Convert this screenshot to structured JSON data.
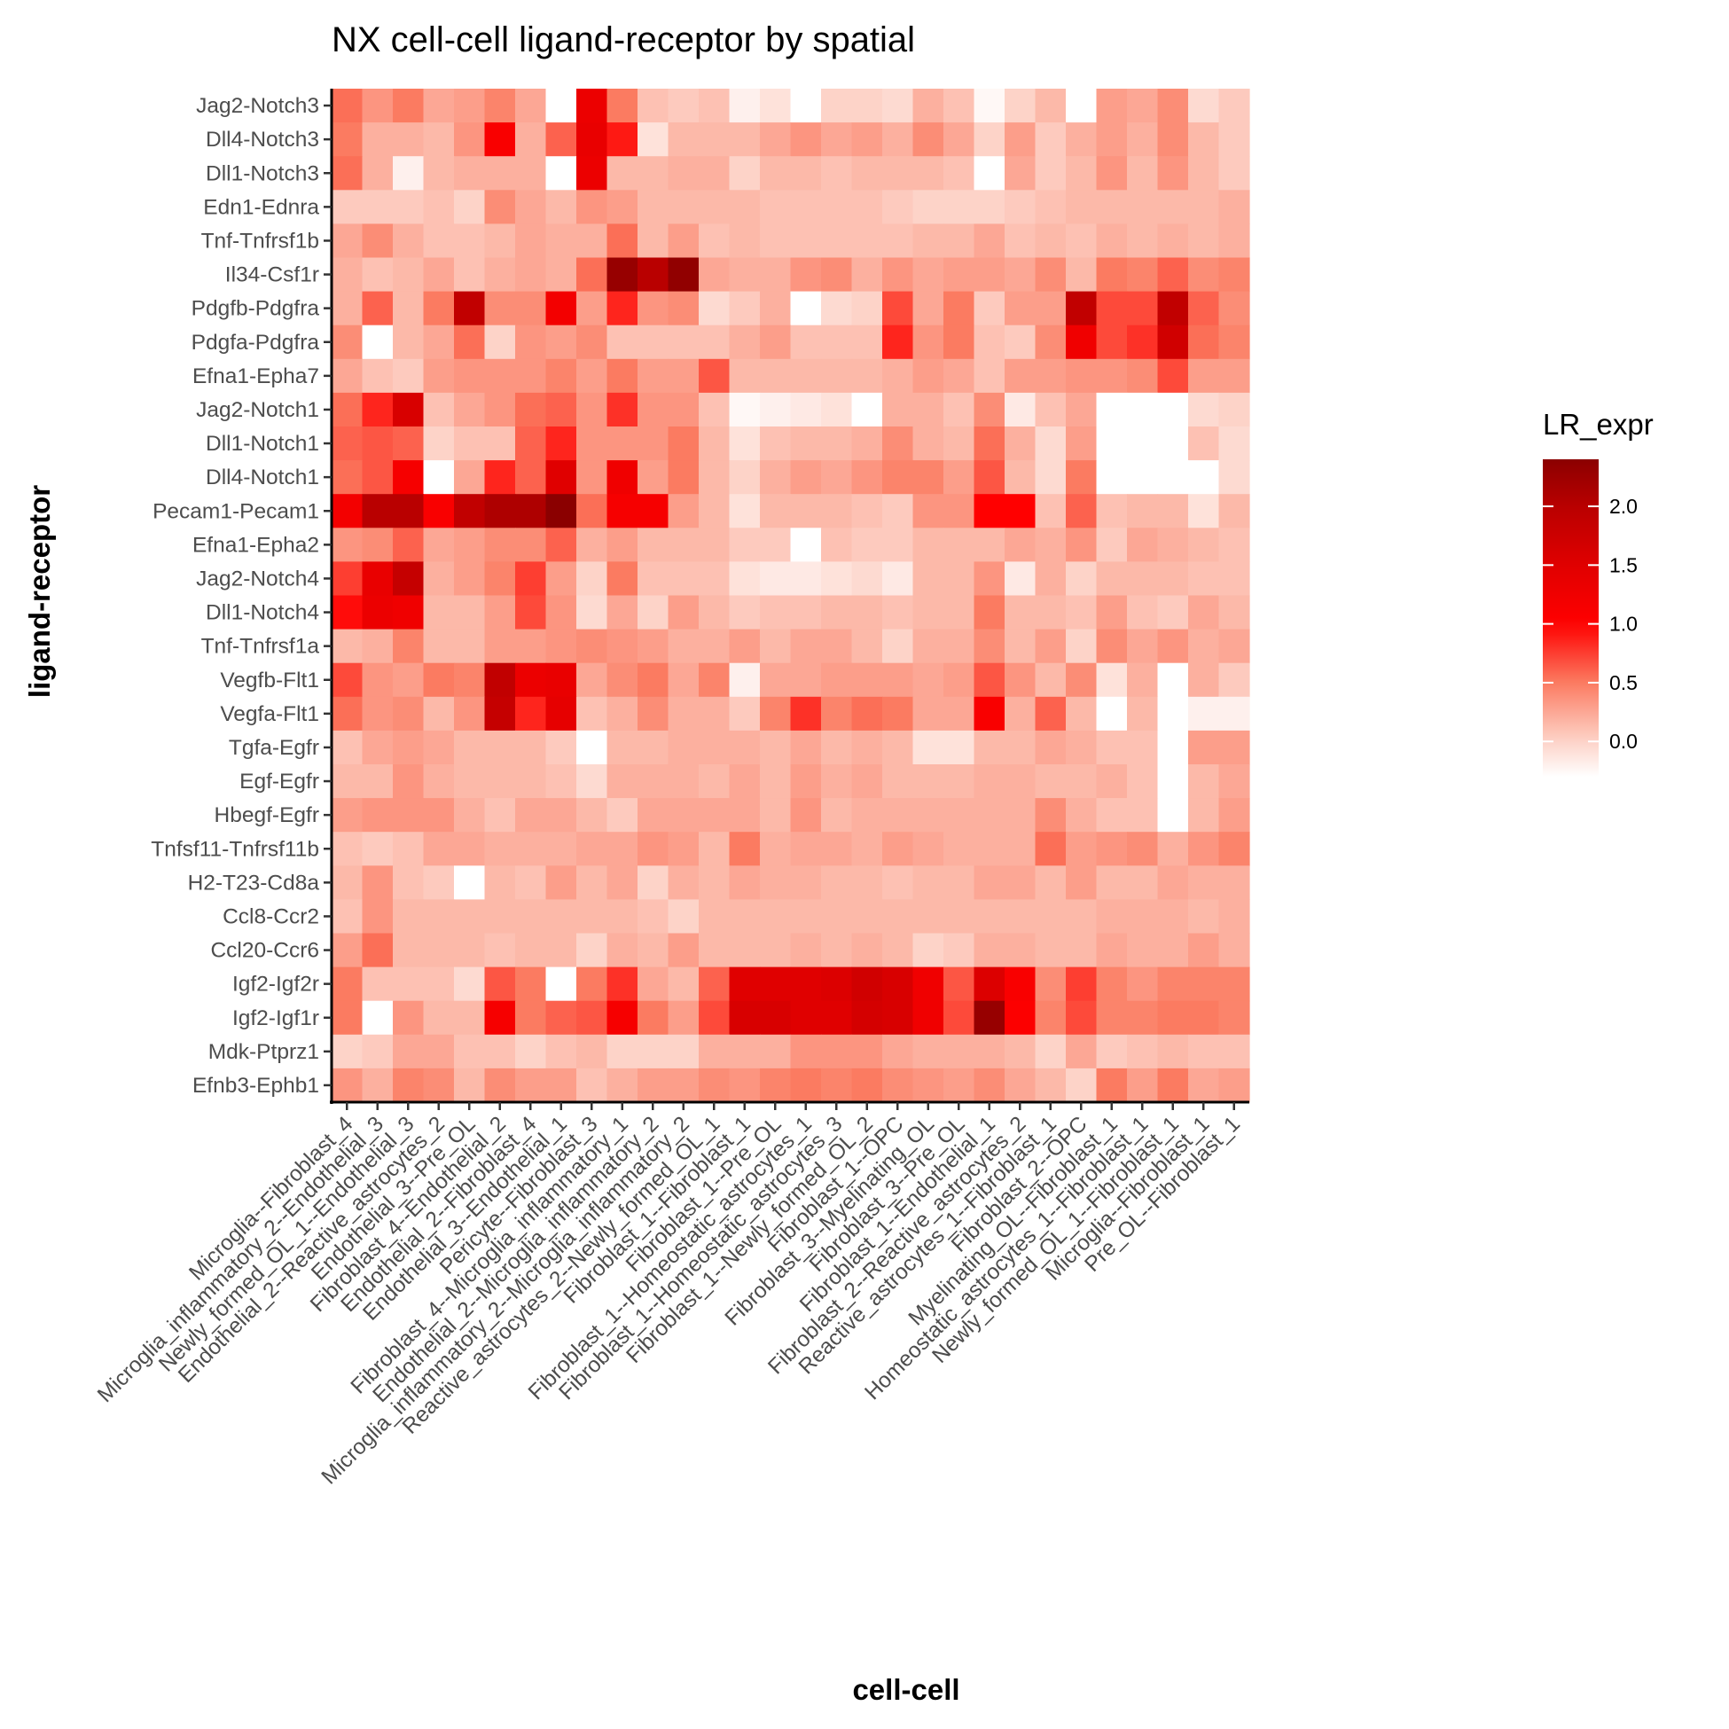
{
  "chart_data": {
    "type": "heatmap",
    "title": "NX cell-cell ligand-receptor by spatial",
    "xlabel": "cell-cell",
    "ylabel": "ligand-receptor",
    "legend": {
      "title": "LR_expr",
      "ticks": [
        0.0,
        0.5,
        1.0,
        1.5,
        2.0
      ],
      "tick_labels": [
        "0.0",
        "0.5",
        "1.0",
        "1.5",
        "2.0"
      ],
      "range": [
        -0.3,
        2.4
      ],
      "position": "right"
    },
    "color_scale": {
      "low": "#ffffff",
      "stops": [
        {
          "value": -0.3,
          "color": "#ffffff"
        },
        {
          "value": 0.0,
          "color": "#fdd3c8"
        },
        {
          "value": 0.5,
          "color": "#fb7b61"
        },
        {
          "value": 1.0,
          "color": "#ff0000"
        },
        {
          "value": 1.5,
          "color": "#e00000"
        },
        {
          "value": 2.0,
          "color": "#b90000"
        },
        {
          "value": 2.4,
          "color": "#8b0000"
        }
      ],
      "missing": "#ffffff"
    },
    "x": [
      "Microglia--Fibroblast_4",
      "Microglia_inflammatory_2--Endothelial_3",
      "Newly_formed_OL_1--Endothelial_3",
      "Endothelial_2--Reactive_astrocytes_2",
      "Endothelial_3--Pre_OL",
      "Fibroblast_4--Endothelial_2",
      "Endothelial_2--Fibroblast_4",
      "Endothelial_3--Endothelial_1",
      "Pericyte--Fibroblast_3",
      "Fibroblast_4--Microglia_inflammatory_1",
      "Endothelial_2--Microglia_inflammatory_2",
      "Microglia_inflammatory_2--Microglia_inflammatory_2",
      "Reactive_astrocytes_2--Newly_formed_OL_1",
      "Fibroblast_1--Fibroblast_1",
      "Fibroblast_1--Pre_OL",
      "Fibroblast_1--Homeostatic_astrocytes_1",
      "Fibroblast_1--Homeostatic_astrocytes_3",
      "Fibroblast_1--Newly_formed_OL_2",
      "Fibroblast_1--OPC",
      "Fibroblast_3--Myelinating_OL",
      "Fibroblast_3--Pre_OL",
      "Fibroblast_1--Endothelial_1",
      "Fibroblast_2--Reactive_astrocytes_2",
      "Reactive_astrocytes_1--Fibroblast_1",
      "Fibroblast_2--OPC",
      "Myelinating_OL--Fibroblast_1",
      "Homeostatic_astrocytes_1--Fibroblast_1",
      "Newly_formed_OL_1--Fibroblast_1",
      "Microglia--Fibroblast_1",
      "Pre_OL--Fibroblast_1"
    ],
    "y": [
      "Jag2-Notch3",
      "Dll4-Notch3",
      "Dll1-Notch3",
      "Edn1-Ednra",
      "Tnf-Tnfrsf1b",
      "Il34-Csf1r",
      "Pdgfb-Pdgfra",
      "Pdgfa-Pdgfra",
      "Efna1-Epha7",
      "Jag2-Notch1",
      "Dll1-Notch1",
      "Dll4-Notch1",
      "Pecam1-Pecam1",
      "Efna1-Epha2",
      "Jag2-Notch4",
      "Dll1-Notch4",
      "Tnf-Tnfrsf1a",
      "Vegfb-Flt1",
      "Vegfa-Flt1",
      "Tgfa-Egfr",
      "Egf-Egfr",
      "Hbegf-Egfr",
      "Tnfsf11-Tnfrsf11b",
      "H2-T23-Cd8a",
      "Ccl8-Ccr2",
      "Ccl20-Ccr6",
      "Igf2-Igf2r",
      "Igf2-Igf1r",
      "Mdk-Ptprz1",
      "Efnb3-Ephb1"
    ],
    "values": [
      [
        0.55,
        0.35,
        0.5,
        0.25,
        0.3,
        0.45,
        0.25,
        -0.3,
        1.3,
        0.5,
        0.1,
        0.05,
        0.1,
        -0.2,
        -0.1,
        -0.3,
        0.0,
        0.0,
        -0.05,
        0.2,
        0.1,
        -0.25,
        0.0,
        0.15,
        -0.3,
        0.3,
        0.25,
        0.4,
        -0.05,
        0.05
      ],
      [
        0.5,
        0.2,
        0.2,
        0.15,
        0.35,
        1.1,
        0.2,
        0.6,
        1.35,
        0.9,
        -0.1,
        0.15,
        0.15,
        0.15,
        0.25,
        0.35,
        0.25,
        0.3,
        0.2,
        0.4,
        0.25,
        0.0,
        0.3,
        0.05,
        0.2,
        0.3,
        0.2,
        0.4,
        0.15,
        0.05
      ],
      [
        0.55,
        0.2,
        -0.2,
        0.15,
        0.2,
        0.2,
        0.2,
        -0.3,
        1.3,
        0.15,
        0.15,
        0.2,
        0.2,
        0.0,
        0.15,
        0.15,
        0.1,
        0.15,
        0.15,
        0.15,
        0.1,
        -0.3,
        0.25,
        0.05,
        0.15,
        0.35,
        0.15,
        0.35,
        0.15,
        0.05
      ],
      [
        0.05,
        0.05,
        0.05,
        0.1,
        0.0,
        0.4,
        0.25,
        0.15,
        0.35,
        0.3,
        0.15,
        0.15,
        0.15,
        0.15,
        0.1,
        0.1,
        0.1,
        0.1,
        0.05,
        0.0,
        0.0,
        0.0,
        0.05,
        0.1,
        0.15,
        0.15,
        0.15,
        0.15,
        0.15,
        0.2
      ],
      [
        0.25,
        0.4,
        0.2,
        0.1,
        0.1,
        0.15,
        0.25,
        0.2,
        0.2,
        0.55,
        0.15,
        0.3,
        0.1,
        0.15,
        0.1,
        0.1,
        0.1,
        0.1,
        0.1,
        0.15,
        0.15,
        0.25,
        0.1,
        0.15,
        0.1,
        0.2,
        0.15,
        0.2,
        0.15,
        0.2
      ],
      [
        0.2,
        0.1,
        0.15,
        0.25,
        0.1,
        0.2,
        0.25,
        0.2,
        0.55,
        2.3,
        2.0,
        2.35,
        0.25,
        0.2,
        0.2,
        0.35,
        0.4,
        0.2,
        0.35,
        0.25,
        0.3,
        0.3,
        0.25,
        0.4,
        0.15,
        0.5,
        0.45,
        0.6,
        0.4,
        0.45
      ],
      [
        0.2,
        0.6,
        0.15,
        0.5,
        1.9,
        0.4,
        0.4,
        1.2,
        0.3,
        0.85,
        0.35,
        0.4,
        -0.05,
        0.05,
        0.2,
        -0.3,
        -0.05,
        0.0,
        0.7,
        0.25,
        0.5,
        0.05,
        0.3,
        0.3,
        1.9,
        0.7,
        0.7,
        1.9,
        0.6,
        0.4
      ],
      [
        0.4,
        -0.3,
        0.15,
        0.25,
        0.55,
        0.0,
        0.35,
        0.3,
        0.4,
        0.1,
        0.1,
        0.1,
        0.1,
        0.2,
        0.3,
        0.1,
        0.1,
        0.1,
        0.85,
        0.35,
        0.5,
        0.1,
        0.05,
        0.4,
        1.25,
        0.7,
        0.8,
        1.7,
        0.55,
        0.45
      ],
      [
        0.25,
        0.1,
        0.05,
        0.3,
        0.35,
        0.35,
        0.35,
        0.45,
        0.3,
        0.5,
        0.3,
        0.3,
        0.65,
        0.15,
        0.15,
        0.15,
        0.15,
        0.15,
        0.2,
        0.3,
        0.25,
        0.1,
        0.3,
        0.3,
        0.35,
        0.35,
        0.4,
        0.7,
        0.3,
        0.3
      ],
      [
        0.55,
        0.85,
        1.6,
        0.1,
        0.25,
        0.35,
        0.55,
        0.6,
        0.35,
        0.8,
        0.35,
        0.35,
        0.1,
        -0.25,
        -0.2,
        -0.15,
        -0.1,
        -0.3,
        0.2,
        0.2,
        0.1,
        0.4,
        -0.15,
        0.1,
        0.25,
        -0.3,
        -0.3,
        -0.3,
        -0.05,
        0.0
      ],
      [
        0.6,
        0.65,
        0.6,
        0.0,
        0.1,
        0.1,
        0.6,
        0.85,
        0.35,
        0.35,
        0.35,
        0.5,
        0.15,
        -0.1,
        0.1,
        0.15,
        0.15,
        0.2,
        0.4,
        0.2,
        0.15,
        0.55,
        0.2,
        -0.05,
        0.3,
        -0.3,
        -0.3,
        -0.3,
        0.1,
        -0.05
      ],
      [
        0.55,
        0.65,
        1.15,
        -0.3,
        0.25,
        0.85,
        0.6,
        1.5,
        0.35,
        1.25,
        0.3,
        0.5,
        0.15,
        0.0,
        0.2,
        0.3,
        0.25,
        0.35,
        0.45,
        0.45,
        0.3,
        0.65,
        0.15,
        -0.05,
        0.5,
        -0.3,
        -0.3,
        -0.3,
        -0.3,
        -0.05
      ],
      [
        1.2,
        2.0,
        2.0,
        1.1,
        1.9,
        2.1,
        2.1,
        2.4,
        0.55,
        1.15,
        1.15,
        0.3,
        0.15,
        -0.1,
        0.15,
        0.15,
        0.15,
        0.1,
        0.05,
        0.35,
        0.35,
        1.0,
        1.0,
        0.1,
        0.6,
        0.1,
        0.15,
        0.15,
        -0.1,
        0.15
      ],
      [
        0.35,
        0.4,
        0.6,
        0.25,
        0.3,
        0.4,
        0.4,
        0.6,
        0.2,
        0.3,
        0.15,
        0.15,
        0.15,
        0.05,
        0.05,
        -0.3,
        0.1,
        0.05,
        0.05,
        0.15,
        0.15,
        0.15,
        0.25,
        0.2,
        0.35,
        0.05,
        0.25,
        0.2,
        0.15,
        0.1
      ],
      [
        0.75,
        1.35,
        1.85,
        0.2,
        0.3,
        0.45,
        0.75,
        0.3,
        0.0,
        0.5,
        0.1,
        0.1,
        0.1,
        -0.1,
        -0.15,
        -0.15,
        -0.1,
        -0.05,
        -0.15,
        0.15,
        0.15,
        0.35,
        -0.15,
        0.2,
        0.0,
        0.15,
        0.15,
        0.15,
        0.1,
        0.1
      ],
      [
        0.95,
        1.3,
        1.25,
        0.15,
        0.15,
        0.3,
        0.7,
        0.35,
        -0.05,
        0.25,
        0.0,
        0.3,
        0.15,
        0.05,
        0.1,
        0.1,
        0.15,
        0.15,
        0.1,
        0.15,
        0.15,
        0.5,
        0.15,
        0.15,
        0.1,
        0.3,
        0.1,
        0.05,
        0.25,
        0.15
      ],
      [
        0.15,
        0.2,
        0.45,
        0.15,
        0.15,
        0.3,
        0.3,
        0.35,
        0.4,
        0.35,
        0.3,
        0.2,
        0.2,
        0.3,
        0.15,
        0.25,
        0.25,
        0.15,
        0.0,
        0.2,
        0.2,
        0.4,
        0.15,
        0.3,
        0.0,
        0.4,
        0.25,
        0.35,
        0.2,
        0.25
      ],
      [
        0.7,
        0.35,
        0.3,
        0.5,
        0.45,
        1.9,
        1.3,
        1.35,
        0.25,
        0.4,
        0.5,
        0.25,
        0.45,
        -0.2,
        0.25,
        0.25,
        0.3,
        0.3,
        0.3,
        0.25,
        0.3,
        0.65,
        0.35,
        0.15,
        0.4,
        -0.1,
        0.2,
        -0.3,
        0.2,
        0.05
      ],
      [
        0.55,
        0.35,
        0.4,
        0.15,
        0.35,
        1.85,
        0.85,
        1.4,
        0.1,
        0.2,
        0.4,
        0.2,
        0.2,
        0.05,
        0.45,
        0.8,
        0.45,
        0.55,
        0.5,
        0.25,
        0.25,
        1.1,
        0.2,
        0.6,
        0.15,
        -0.3,
        0.15,
        -0.3,
        -0.2,
        -0.2
      ],
      [
        0.1,
        0.25,
        0.3,
        0.25,
        0.15,
        0.15,
        0.15,
        0.05,
        -0.3,
        0.15,
        0.15,
        0.2,
        0.2,
        0.2,
        0.15,
        0.25,
        0.15,
        0.2,
        0.15,
        -0.1,
        -0.1,
        0.15,
        0.15,
        0.25,
        0.2,
        0.1,
        0.1,
        -0.3,
        0.3,
        0.3
      ],
      [
        0.15,
        0.15,
        0.35,
        0.2,
        0.15,
        0.15,
        0.15,
        0.1,
        -0.05,
        0.2,
        0.2,
        0.2,
        0.15,
        0.25,
        0.15,
        0.3,
        0.2,
        0.25,
        0.15,
        0.15,
        0.15,
        0.2,
        0.2,
        0.15,
        0.15,
        0.2,
        0.1,
        -0.3,
        0.15,
        0.25
      ],
      [
        0.3,
        0.35,
        0.35,
        0.35,
        0.2,
        0.1,
        0.25,
        0.25,
        0.15,
        0.05,
        0.25,
        0.25,
        0.25,
        0.25,
        0.15,
        0.35,
        0.15,
        0.2,
        0.2,
        0.2,
        0.2,
        0.2,
        0.2,
        0.4,
        0.2,
        0.1,
        0.1,
        -0.3,
        0.15,
        0.3
      ],
      [
        0.1,
        0.05,
        0.1,
        0.25,
        0.25,
        0.2,
        0.2,
        0.2,
        0.25,
        0.25,
        0.35,
        0.3,
        0.15,
        0.5,
        0.2,
        0.25,
        0.25,
        0.2,
        0.3,
        0.25,
        0.2,
        0.2,
        0.2,
        0.55,
        0.3,
        0.35,
        0.4,
        0.2,
        0.35,
        0.45
      ],
      [
        0.15,
        0.35,
        0.1,
        0.05,
        -0.3,
        0.15,
        0.1,
        0.3,
        0.15,
        0.25,
        0.0,
        0.2,
        0.15,
        0.25,
        0.2,
        0.2,
        0.15,
        0.15,
        0.1,
        0.15,
        0.15,
        0.25,
        0.25,
        0.15,
        0.3,
        0.15,
        0.15,
        0.25,
        0.2,
        0.2
      ],
      [
        0.1,
        0.35,
        0.15,
        0.15,
        0.15,
        0.15,
        0.15,
        0.15,
        0.15,
        0.15,
        0.1,
        0.0,
        0.15,
        0.15,
        0.15,
        0.15,
        0.15,
        0.15,
        0.15,
        0.15,
        0.15,
        0.15,
        0.15,
        0.15,
        0.15,
        0.2,
        0.2,
        0.2,
        0.15,
        0.2
      ],
      [
        0.3,
        0.55,
        0.15,
        0.15,
        0.15,
        0.1,
        0.15,
        0.15,
        0.0,
        0.2,
        0.15,
        0.3,
        0.15,
        0.15,
        0.15,
        0.2,
        0.15,
        0.2,
        0.15,
        0.0,
        0.05,
        0.2,
        0.2,
        0.15,
        0.15,
        0.25,
        0.2,
        0.2,
        0.3,
        0.2
      ],
      [
        0.5,
        0.1,
        0.1,
        0.1,
        -0.05,
        0.65,
        0.5,
        -0.3,
        0.5,
        0.8,
        0.25,
        0.15,
        0.6,
        1.5,
        1.5,
        1.5,
        1.55,
        1.7,
        1.6,
        1.25,
        0.65,
        1.55,
        1.1,
        0.4,
        0.75,
        0.45,
        0.35,
        0.45,
        0.45,
        0.45
      ],
      [
        0.5,
        -0.3,
        0.35,
        0.15,
        0.15,
        1.15,
        0.5,
        0.6,
        0.65,
        1.15,
        0.5,
        0.3,
        0.7,
        1.6,
        1.6,
        1.5,
        1.5,
        1.65,
        1.6,
        1.25,
        0.7,
        2.3,
        1.05,
        0.45,
        0.7,
        0.45,
        0.45,
        0.5,
        0.5,
        0.45
      ],
      [
        0.0,
        0.05,
        0.25,
        0.25,
        0.1,
        0.1,
        0.0,
        0.1,
        0.15,
        0.0,
        0.0,
        0.0,
        0.2,
        0.2,
        0.2,
        0.35,
        0.35,
        0.35,
        0.25,
        0.2,
        0.2,
        0.2,
        0.15,
        0.0,
        0.25,
        0.05,
        0.1,
        0.15,
        0.1,
        0.1
      ],
      [
        0.35,
        0.2,
        0.45,
        0.4,
        0.15,
        0.4,
        0.3,
        0.3,
        0.1,
        0.2,
        0.3,
        0.3,
        0.4,
        0.35,
        0.45,
        0.5,
        0.45,
        0.5,
        0.4,
        0.35,
        0.3,
        0.4,
        0.25,
        0.15,
        0.0,
        0.5,
        0.3,
        0.5,
        0.25,
        0.3
      ]
    ]
  }
}
